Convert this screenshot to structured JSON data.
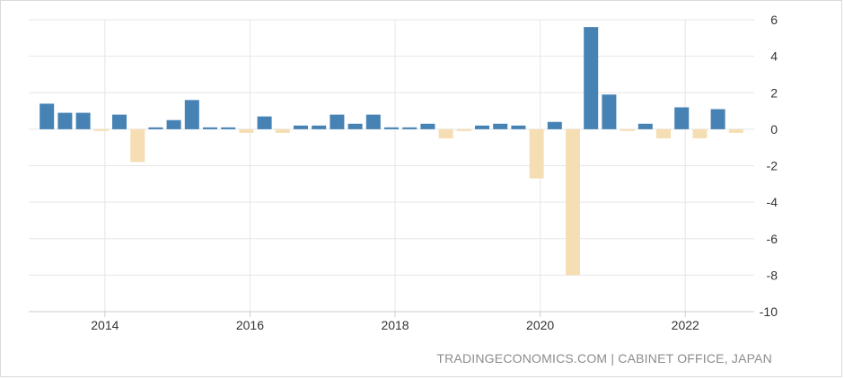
{
  "source_text": "TRADINGECONOMICS.COM | CABINET OFFICE, JAPAN",
  "colors": {
    "positive": "#4682b4",
    "negative": "#f5deb3",
    "grid": "#e6e6e6",
    "axis_line": "#cccccc",
    "text": "#333333",
    "source": "#8c8c8c"
  },
  "chart_data": {
    "type": "bar",
    "title": "",
    "xlabel": "",
    "ylabel": "",
    "ylim": [
      -10,
      6
    ],
    "y_ticks": [
      "6",
      "4",
      "2",
      "0",
      "-2",
      "-4",
      "-6",
      "-8",
      "-10"
    ],
    "y_tick_values": [
      6,
      4,
      2,
      0,
      -2,
      -4,
      -6,
      -8,
      -10
    ],
    "x_ticks": [
      "2014",
      "2016",
      "2018",
      "2020",
      "2022"
    ],
    "x_tick_values": [
      2014,
      2016,
      2018,
      2020,
      2022
    ],
    "grid": true,
    "y_axis_position": "right",
    "series": [
      {
        "categories": [
          "2013 Q1",
          "2013 Q2",
          "2013 Q3",
          "2013 Q4",
          "2014 Q1",
          "2014 Q2",
          "2014 Q3",
          "2014 Q4",
          "2015 Q1",
          "2015 Q2",
          "2015 Q3",
          "2015 Q4",
          "2016 Q1",
          "2016 Q2",
          "2016 Q3",
          "2016 Q4",
          "2017 Q1",
          "2017 Q2",
          "2017 Q3",
          "2017 Q4",
          "2018 Q1",
          "2018 Q2",
          "2018 Q3",
          "2018 Q4",
          "2019 Q1",
          "2019 Q2",
          "2019 Q3",
          "2019 Q4",
          "2020 Q1",
          "2020 Q2",
          "2020 Q3",
          "2020 Q4",
          "2021 Q1",
          "2021 Q2",
          "2021 Q3",
          "2021 Q4",
          "2022 Q1",
          "2022 Q2",
          "2022 Q3"
        ],
        "x": [
          2013.2,
          2013.45,
          2013.7,
          2013.95,
          2014.2,
          2014.45,
          2014.7,
          2014.95,
          2015.2,
          2015.45,
          2015.7,
          2015.95,
          2016.2,
          2016.45,
          2016.7,
          2016.95,
          2017.2,
          2017.45,
          2017.7,
          2017.95,
          2018.2,
          2018.45,
          2018.7,
          2018.95,
          2019.2,
          2019.45,
          2019.7,
          2019.95,
          2020.2,
          2020.45,
          2020.7,
          2020.95,
          2021.2,
          2021.45,
          2021.7,
          2021.95,
          2022.2,
          2022.45,
          2022.7
        ],
        "values": [
          1.4,
          0.9,
          0.9,
          -0.1,
          0.8,
          -1.8,
          0.1,
          0.5,
          1.6,
          0.1,
          0.1,
          -0.2,
          0.7,
          -0.2,
          0.2,
          0.2,
          0.8,
          0.3,
          0.8,
          0.1,
          0.1,
          0.3,
          -0.5,
          -0.1,
          0.2,
          0.3,
          0.2,
          -2.7,
          0.4,
          -8.0,
          5.6,
          1.9,
          -0.1,
          0.3,
          -0.5,
          1.2,
          -0.5,
          1.1,
          -0.2
        ]
      }
    ]
  }
}
